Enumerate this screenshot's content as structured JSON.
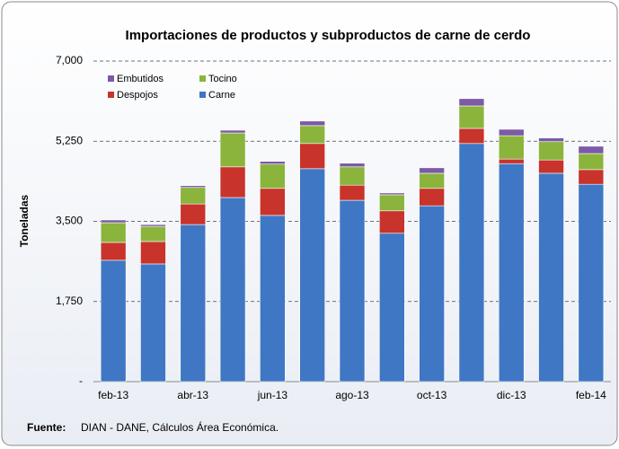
{
  "chart_data": {
    "type": "stacked_bar",
    "title": "Importaciones de productos y subproductos de carne de cerdo",
    "y_label": "Toneladas",
    "categories": [
      "feb-13",
      null,
      "abr-13",
      null,
      "jun-13",
      null,
      "ago-13",
      null,
      "oct-13",
      null,
      "dic-13",
      null,
      "feb-14"
    ],
    "series": [
      {
        "name": "Carne",
        "color": "#3f77c4",
        "values": [
          2650,
          2570,
          3430,
          4020,
          3630,
          4650,
          3960,
          3240,
          3840,
          5200,
          4760,
          4550,
          4310
        ]
      },
      {
        "name": "Despojos",
        "color": "#c8332b",
        "values": [
          390,
          490,
          450,
          670,
          590,
          550,
          330,
          490,
          380,
          330,
          100,
          290,
          320
        ]
      },
      {
        "name": "Tocino",
        "color": "#8ab43c",
        "values": [
          430,
          330,
          360,
          740,
          530,
          390,
          400,
          350,
          330,
          490,
          510,
          400,
          350
        ]
      },
      {
        "name": "Embutidos",
        "color": "#7c5aa6",
        "values": [
          60,
          40,
          40,
          60,
          60,
          100,
          80,
          40,
          120,
          160,
          140,
          80,
          160
        ]
      }
    ],
    "ylim": [
      0,
      7000
    ],
    "yticks": [
      {
        "value": 0,
        "label": "-"
      },
      {
        "value": 1750,
        "label": "1,750"
      },
      {
        "value": 3500,
        "label": "3,500"
      },
      {
        "value": 5250,
        "label": "5,250"
      },
      {
        "value": 7000,
        "label": "7,000"
      }
    ],
    "grid": true,
    "source_label": "Fuente:",
    "source_text": "DIAN - DANE,  Cálculos Área Económica."
  }
}
